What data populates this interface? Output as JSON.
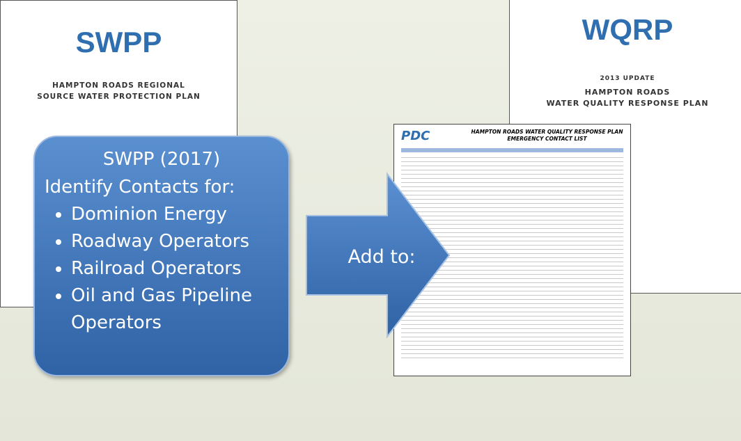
{
  "left_document": {
    "title": "SWPP",
    "subtitle": [
      "HAMPTON ROADS REGIONAL",
      "SOURCE WATER PROTECTION PLAN"
    ]
  },
  "right_document": {
    "title": "WQRP",
    "edition": "2013 UPDATE",
    "subtitle": [
      "HAMPTON ROADS",
      "WATER QUALITY RESPONSE PLAN"
    ]
  },
  "callout": {
    "heading": "SWPP (2017)",
    "lead": "Identify Contacts for:",
    "items": [
      "Dominion Energy",
      "Roadway Operators",
      "Railroad Operators",
      "Oil and Gas Pipeline Operators"
    ]
  },
  "arrow": {
    "label": "Add to:"
  },
  "contact_list": {
    "logo": "PDC",
    "title": "HAMPTON ROADS WATER QUALITY RESPONSE PLAN",
    "subtitle": "EMERGENCY CONTACT LIST"
  }
}
